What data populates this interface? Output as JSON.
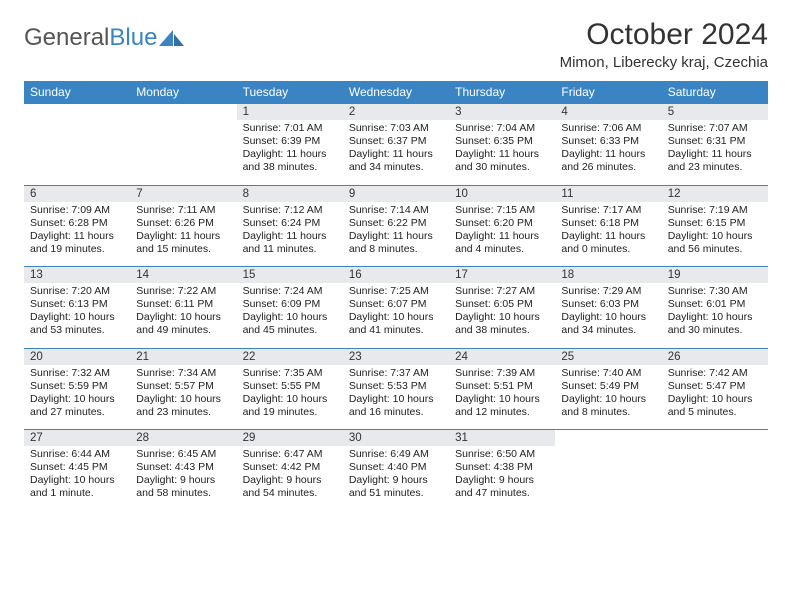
{
  "logo": {
    "text_gray": "General",
    "text_blue": "Blue"
  },
  "title": "October 2024",
  "location": "Mimon, Liberecky kraj, Czechia",
  "colors": {
    "header_bg": "#3b84c4",
    "daynum_bg": "#e7e9ec",
    "border": "#3b84c4"
  },
  "day_headers": [
    "Sunday",
    "Monday",
    "Tuesday",
    "Wednesday",
    "Thursday",
    "Friday",
    "Saturday"
  ],
  "weeks": [
    [
      null,
      null,
      {
        "n": "1",
        "sr": "Sunrise: 7:01 AM",
        "ss": "Sunset: 6:39 PM",
        "dl": "Daylight: 11 hours and 38 minutes."
      },
      {
        "n": "2",
        "sr": "Sunrise: 7:03 AM",
        "ss": "Sunset: 6:37 PM",
        "dl": "Daylight: 11 hours and 34 minutes."
      },
      {
        "n": "3",
        "sr": "Sunrise: 7:04 AM",
        "ss": "Sunset: 6:35 PM",
        "dl": "Daylight: 11 hours and 30 minutes."
      },
      {
        "n": "4",
        "sr": "Sunrise: 7:06 AM",
        "ss": "Sunset: 6:33 PM",
        "dl": "Daylight: 11 hours and 26 minutes."
      },
      {
        "n": "5",
        "sr": "Sunrise: 7:07 AM",
        "ss": "Sunset: 6:31 PM",
        "dl": "Daylight: 11 hours and 23 minutes."
      }
    ],
    [
      {
        "n": "6",
        "sr": "Sunrise: 7:09 AM",
        "ss": "Sunset: 6:28 PM",
        "dl": "Daylight: 11 hours and 19 minutes."
      },
      {
        "n": "7",
        "sr": "Sunrise: 7:11 AM",
        "ss": "Sunset: 6:26 PM",
        "dl": "Daylight: 11 hours and 15 minutes."
      },
      {
        "n": "8",
        "sr": "Sunrise: 7:12 AM",
        "ss": "Sunset: 6:24 PM",
        "dl": "Daylight: 11 hours and 11 minutes."
      },
      {
        "n": "9",
        "sr": "Sunrise: 7:14 AM",
        "ss": "Sunset: 6:22 PM",
        "dl": "Daylight: 11 hours and 8 minutes."
      },
      {
        "n": "10",
        "sr": "Sunrise: 7:15 AM",
        "ss": "Sunset: 6:20 PM",
        "dl": "Daylight: 11 hours and 4 minutes."
      },
      {
        "n": "11",
        "sr": "Sunrise: 7:17 AM",
        "ss": "Sunset: 6:18 PM",
        "dl": "Daylight: 11 hours and 0 minutes."
      },
      {
        "n": "12",
        "sr": "Sunrise: 7:19 AM",
        "ss": "Sunset: 6:15 PM",
        "dl": "Daylight: 10 hours and 56 minutes."
      }
    ],
    [
      {
        "n": "13",
        "sr": "Sunrise: 7:20 AM",
        "ss": "Sunset: 6:13 PM",
        "dl": "Daylight: 10 hours and 53 minutes."
      },
      {
        "n": "14",
        "sr": "Sunrise: 7:22 AM",
        "ss": "Sunset: 6:11 PM",
        "dl": "Daylight: 10 hours and 49 minutes."
      },
      {
        "n": "15",
        "sr": "Sunrise: 7:24 AM",
        "ss": "Sunset: 6:09 PM",
        "dl": "Daylight: 10 hours and 45 minutes."
      },
      {
        "n": "16",
        "sr": "Sunrise: 7:25 AM",
        "ss": "Sunset: 6:07 PM",
        "dl": "Daylight: 10 hours and 41 minutes."
      },
      {
        "n": "17",
        "sr": "Sunrise: 7:27 AM",
        "ss": "Sunset: 6:05 PM",
        "dl": "Daylight: 10 hours and 38 minutes."
      },
      {
        "n": "18",
        "sr": "Sunrise: 7:29 AM",
        "ss": "Sunset: 6:03 PM",
        "dl": "Daylight: 10 hours and 34 minutes."
      },
      {
        "n": "19",
        "sr": "Sunrise: 7:30 AM",
        "ss": "Sunset: 6:01 PM",
        "dl": "Daylight: 10 hours and 30 minutes."
      }
    ],
    [
      {
        "n": "20",
        "sr": "Sunrise: 7:32 AM",
        "ss": "Sunset: 5:59 PM",
        "dl": "Daylight: 10 hours and 27 minutes."
      },
      {
        "n": "21",
        "sr": "Sunrise: 7:34 AM",
        "ss": "Sunset: 5:57 PM",
        "dl": "Daylight: 10 hours and 23 minutes."
      },
      {
        "n": "22",
        "sr": "Sunrise: 7:35 AM",
        "ss": "Sunset: 5:55 PM",
        "dl": "Daylight: 10 hours and 19 minutes."
      },
      {
        "n": "23",
        "sr": "Sunrise: 7:37 AM",
        "ss": "Sunset: 5:53 PM",
        "dl": "Daylight: 10 hours and 16 minutes."
      },
      {
        "n": "24",
        "sr": "Sunrise: 7:39 AM",
        "ss": "Sunset: 5:51 PM",
        "dl": "Daylight: 10 hours and 12 minutes."
      },
      {
        "n": "25",
        "sr": "Sunrise: 7:40 AM",
        "ss": "Sunset: 5:49 PM",
        "dl": "Daylight: 10 hours and 8 minutes."
      },
      {
        "n": "26",
        "sr": "Sunrise: 7:42 AM",
        "ss": "Sunset: 5:47 PM",
        "dl": "Daylight: 10 hours and 5 minutes."
      }
    ],
    [
      {
        "n": "27",
        "sr": "Sunrise: 6:44 AM",
        "ss": "Sunset: 4:45 PM",
        "dl": "Daylight: 10 hours and 1 minute."
      },
      {
        "n": "28",
        "sr": "Sunrise: 6:45 AM",
        "ss": "Sunset: 4:43 PM",
        "dl": "Daylight: 9 hours and 58 minutes."
      },
      {
        "n": "29",
        "sr": "Sunrise: 6:47 AM",
        "ss": "Sunset: 4:42 PM",
        "dl": "Daylight: 9 hours and 54 minutes."
      },
      {
        "n": "30",
        "sr": "Sunrise: 6:49 AM",
        "ss": "Sunset: 4:40 PM",
        "dl": "Daylight: 9 hours and 51 minutes."
      },
      {
        "n": "31",
        "sr": "Sunrise: 6:50 AM",
        "ss": "Sunset: 4:38 PM",
        "dl": "Daylight: 9 hours and 47 minutes."
      },
      null,
      null
    ]
  ]
}
